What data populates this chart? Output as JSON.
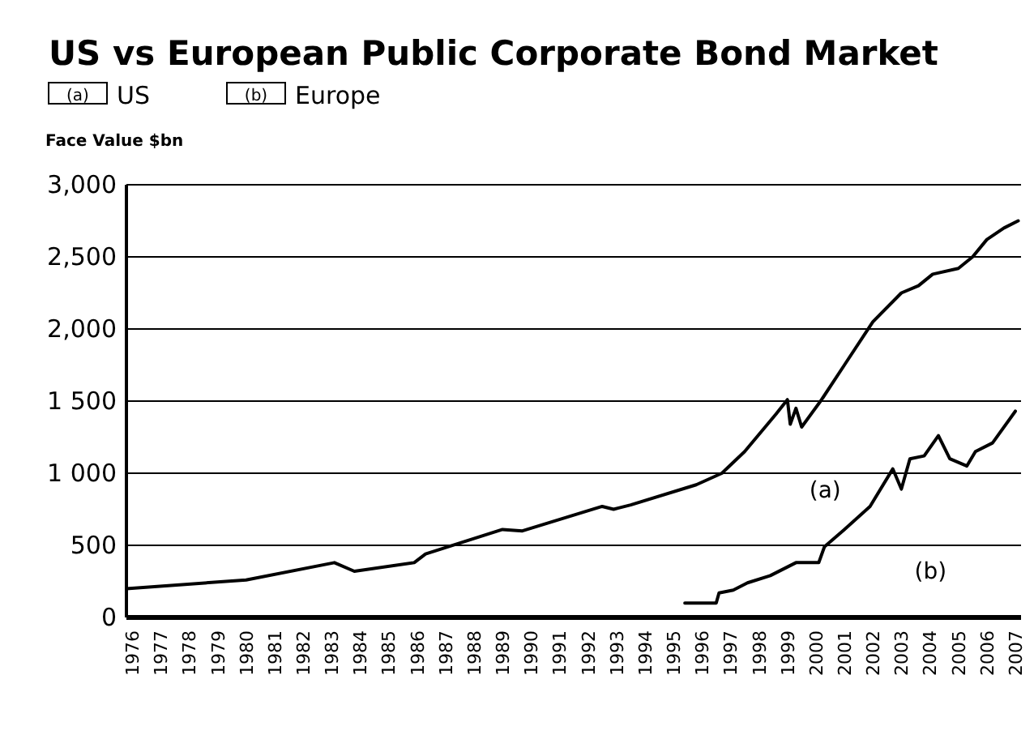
{
  "chart_data": {
    "type": "line",
    "title": "US vs  European Public Corporate Bond Market",
    "ylabel": "Face Value $bn",
    "xlim": [
      1975.8,
      2007.2
    ],
    "xticks": [
      1976,
      1977,
      1978,
      1979,
      1980,
      1981,
      1982,
      1983,
      1984,
      1985,
      1986,
      1987,
      1988,
      1989,
      1990,
      1991,
      1992,
      1993,
      1994,
      1995,
      1996,
      1997,
      1998,
      1999,
      2000,
      2001,
      2002,
      2003,
      2004,
      2005,
      2006,
      2007
    ],
    "ylim": [
      0,
      3000
    ],
    "yticks": [
      {
        "value": 0,
        "label": "0"
      },
      {
        "value": 500,
        "label": "500"
      },
      {
        "value": 1000,
        "label": "1 000"
      },
      {
        "value": 1500,
        "label": "1 500"
      },
      {
        "value": 2000,
        "label": "2,000"
      },
      {
        "value": 2500,
        "label": "2,500"
      },
      {
        "value": 3000,
        "label": "3,000"
      }
    ],
    "grid": "y",
    "legend": "top left",
    "line_style": "solid",
    "series": [
      {
        "name": "US",
        "color": "#000000",
        "x": [
          1975.8,
          1980,
          1983.1,
          1983.8,
          1985.9,
          1986.3,
          1989,
          1989.7,
          1992.5,
          1992.9,
          1993.5,
          1995.8,
          1996.7,
          1997.5,
          1998.6,
          1999,
          1999.1,
          1999.3,
          1999.5,
          2000.2,
          2001,
          2002,
          2003,
          2003.6,
          2004.1,
          2005,
          2005.5,
          2006,
          2006.6,
          2007.1
        ],
        "values": [
          200,
          260,
          380,
          320,
          380,
          440,
          610,
          600,
          770,
          750,
          780,
          920,
          1000,
          1150,
          1410,
          1510,
          1340,
          1450,
          1320,
          1510,
          1750,
          2050,
          2250,
          2300,
          2380,
          2420,
          2500,
          2620,
          2700,
          2750
        ]
      },
      {
        "name": "Europe",
        "color": "#000000",
        "x": [
          1995.4,
          1996.5,
          1996.6,
          1997.1,
          1997.6,
          1998.4,
          1999.3,
          2000.1,
          2000.3,
          2001,
          2001.9,
          2002.7,
          2003,
          2003.3,
          2003.8,
          2004.3,
          2004.7,
          2005.3,
          2005.6,
          2006.2,
          2007
        ],
        "values": [
          100,
          100,
          170,
          190,
          240,
          290,
          380,
          380,
          490,
          610,
          770,
          1030,
          890,
          1100,
          1120,
          1260,
          1100,
          1050,
          1150,
          1210,
          1430
        ]
      }
    ],
    "annotations": [
      "(a)",
      "(b)"
    ]
  }
}
